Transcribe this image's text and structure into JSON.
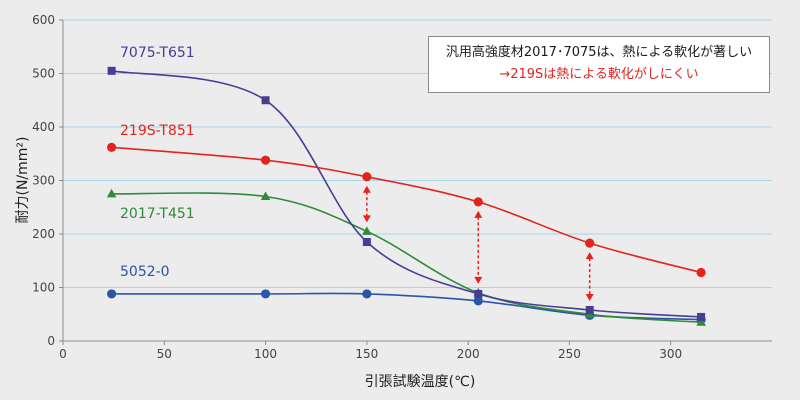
{
  "chart_data": {
    "type": "line",
    "xlabel": "引張試験温度(℃)",
    "ylabel": "耐力(N/mm²)",
    "xlim": [
      0,
      350
    ],
    "ylim": [
      0,
      600
    ],
    "xticks": [
      0,
      50,
      100,
      150,
      200,
      250,
      300
    ],
    "yticks": [
      0,
      100,
      200,
      300,
      400,
      500,
      600
    ],
    "grid": "horizontal",
    "legend": "inline",
    "x": [
      24,
      100,
      150,
      205,
      260,
      315
    ],
    "series": [
      {
        "name": "7075-T651",
        "color": "#4a3b96",
        "marker": "square",
        "values": [
          505,
          450,
          185,
          88,
          58,
          45
        ]
      },
      {
        "name": "219S-T851",
        "color": "#e5231e",
        "marker": "circle",
        "values": [
          362,
          338,
          307,
          260,
          183,
          128
        ]
      },
      {
        "name": "2017-T451",
        "color": "#2f8a3c",
        "marker": "triangle",
        "values": [
          275,
          270,
          205,
          90,
          50,
          35
        ]
      },
      {
        "name": "5052-0",
        "color": "#2b55a6",
        "marker": "circle",
        "values": [
          88,
          88,
          88,
          75,
          48,
          40
        ]
      }
    ],
    "annotation": [
      {
        "text": "汎用高強度材2017･7075は、熱による軟化が著しい",
        "color": "#1a1a1a"
      },
      {
        "text": "→219Sは熱による軟化がしにくい",
        "color": "#e5231e"
      }
    ],
    "comparison_arrows": {
      "x": [
        150,
        205,
        260
      ],
      "color": "#e5231e"
    }
  }
}
